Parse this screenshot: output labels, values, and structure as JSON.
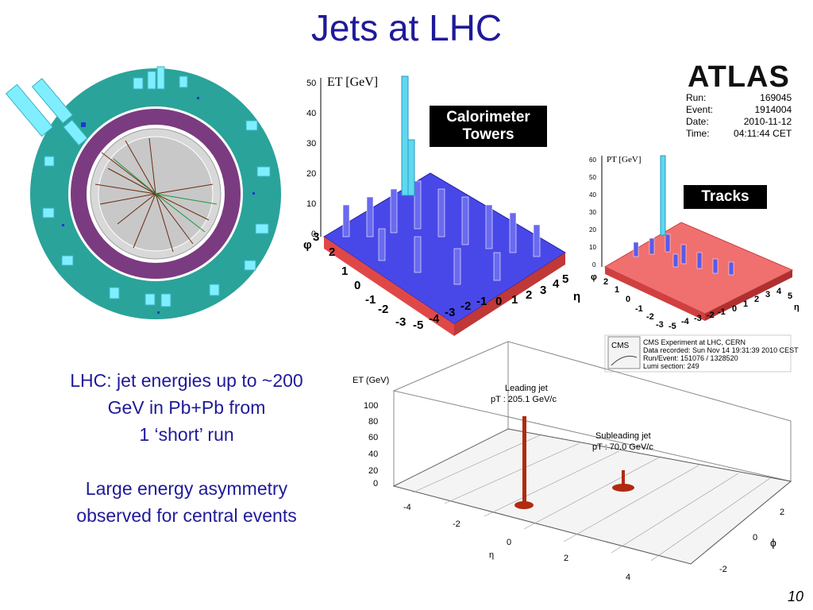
{
  "slide": {
    "title": "Jets at LHC",
    "page_number": "10"
  },
  "left_text": {
    "line1": "LHC: jet energies up to ~200",
    "line2": "GeV in Pb+Pb from",
    "line3": "1 ‘short’ run",
    "line4": "Large energy asymmetry",
    "line5": "observed for central events"
  },
  "atlas": {
    "logo": "ATLAS",
    "info": [
      {
        "key": "Run:",
        "val": "169045"
      },
      {
        "key": "Event:",
        "val": "1914004"
      },
      {
        "key": "Date:",
        "val": "2010-11-12"
      },
      {
        "key": "Time:",
        "val": "04:11:44 CET"
      }
    ],
    "calo_label_line1": "Calorimeter",
    "calo_label_line2": "Towers",
    "tracks_label": "Tracks",
    "calo_axis_title": "ET [GeV]",
    "calo_yticks": [
      "50",
      "40",
      "30",
      "20",
      "10",
      "0"
    ],
    "calo_phi_ticks": [
      "3",
      "2",
      "1",
      "0",
      "-1",
      "-2",
      "-3"
    ],
    "calo_eta_ticks": [
      "-5",
      "-4",
      "-3",
      "-2",
      "-1",
      "0",
      "1",
      "2",
      "3",
      "4",
      "5"
    ],
    "tracks_axis_title": "PT [GeV]",
    "tracks_yticks": [
      "60",
      "50",
      "40",
      "30",
      "20",
      "10",
      "0"
    ],
    "tracks_phi_ticks": [
      "2",
      "1",
      "0",
      "-1",
      "-2",
      "-3"
    ],
    "tracks_eta_ticks": [
      "-5",
      "-4",
      "-3",
      "-2",
      "-1",
      "0",
      "1",
      "2",
      "3",
      "4",
      "5"
    ],
    "phi_symbol": "φ",
    "eta_symbol": "η"
  },
  "cms": {
    "info": [
      "CMS Experiment at LHC, CERN",
      "Data recorded: Sun Nov 14 19:31:39 2010 CEST",
      "Run/Event: 151076 / 1328520",
      "Lumi section: 249"
    ],
    "logo": "CMS",
    "axis_title": "ET (GeV)",
    "yticks": [
      "100",
      "80",
      "60",
      "40",
      "20",
      "0"
    ],
    "eta_ticks": [
      "-4",
      "-2",
      "0",
      "2",
      "4"
    ],
    "phi_ticks": [
      "2",
      "0",
      "-2"
    ],
    "eta_label": "η",
    "phi_label": "ϕ",
    "leading_jet_line1": "Leading jet",
    "leading_jet_line2": "pT : 205.1 GeV/c",
    "subleading_jet_line1": "Subleading jet",
    "subleading_jet_line2": "pT : 70.0 GeV/c"
  },
  "colors": {
    "title": "#1f1a99",
    "detector_outer": "#2aa39a",
    "detector_inner": "#7b3b80",
    "tower": "#3a3ae0",
    "tracks_base": "#e0504e",
    "cms_jet": "#b02a10"
  }
}
